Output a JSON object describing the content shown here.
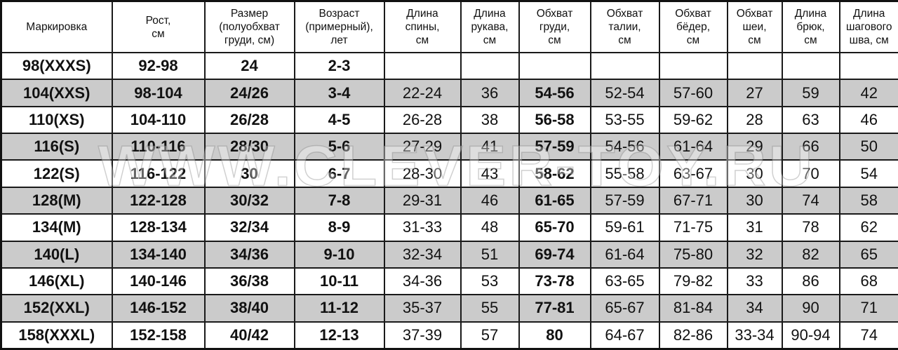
{
  "headers": [
    "Маркировка",
    "Рост,\nсм",
    "Размер\n(полуобхват\nгруди, см)",
    "Возраст\n(примерный),\nлет",
    "Длина\nспины,\nсм",
    "Длина\nрукава,\nсм",
    "Обхват\nгруди,\nсм",
    "Обхват\nталии,\nсм",
    "Обхват\nбёдер,\nсм",
    "Обхват\nшеи,\nсм",
    "Длина\nбрюк,\nсм",
    "Длина\nшагового\nшва, см"
  ],
  "bold_columns": [
    0,
    1,
    2,
    3,
    6
  ],
  "rows": [
    [
      "98(XXXS)",
      "92-98",
      "24",
      "2-3",
      "",
      "",
      "",
      "",
      "",
      "",
      "",
      ""
    ],
    [
      "104(XXS)",
      "98-104",
      "24/26",
      "3-4",
      "22-24",
      "36",
      "54-56",
      "52-54",
      "57-60",
      "27",
      "59",
      "42"
    ],
    [
      "110(XS)",
      "104-110",
      "26/28",
      "4-5",
      "26-28",
      "38",
      "56-58",
      "53-55",
      "59-62",
      "28",
      "63",
      "46"
    ],
    [
      "116(S)",
      "110-116",
      "28/30",
      "5-6",
      "27-29",
      "41",
      "57-59",
      "54-56",
      "61-64",
      "29",
      "66",
      "50"
    ],
    [
      "122(S)",
      "116-122",
      "30",
      "6-7",
      "28-30",
      "43",
      "58-62",
      "55-58",
      "63-67",
      "30",
      "70",
      "54"
    ],
    [
      "128(M)",
      "122-128",
      "30/32",
      "7-8",
      "29-31",
      "46",
      "61-65",
      "57-59",
      "67-71",
      "30",
      "74",
      "58"
    ],
    [
      "134(M)",
      "128-134",
      "32/34",
      "8-9",
      "31-33",
      "48",
      "65-70",
      "59-61",
      "71-75",
      "31",
      "78",
      "62"
    ],
    [
      "140(L)",
      "134-140",
      "34/36",
      "9-10",
      "32-34",
      "51",
      "69-74",
      "61-64",
      "75-80",
      "32",
      "82",
      "65"
    ],
    [
      "146(XL)",
      "140-146",
      "36/38",
      "10-11",
      "34-36",
      "53",
      "73-78",
      "63-65",
      "79-82",
      "33",
      "86",
      "68"
    ],
    [
      "152(XXL)",
      "146-152",
      "38/40",
      "11-12",
      "35-37",
      "55",
      "77-81",
      "65-67",
      "81-84",
      "34",
      "90",
      "71"
    ],
    [
      "158(XXXL)",
      "152-158",
      "40/42",
      "12-13",
      "37-39",
      "57",
      "80",
      "64-67",
      "82-86",
      "33-34",
      "90-94",
      "74"
    ]
  ],
  "colors": {
    "gray_row": "#cbcbcb",
    "border": "#1a1a1a"
  },
  "watermark": "WWW.CLEVER-TOY.RU"
}
